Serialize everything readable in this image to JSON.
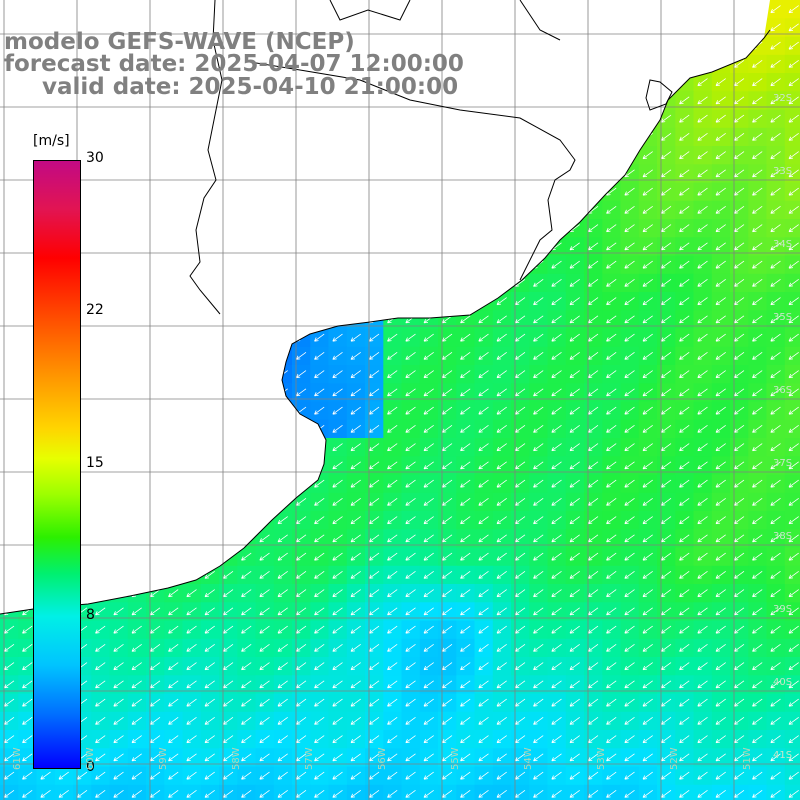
{
  "header": {
    "model": "modelo GEFS-WAVE (NCEP)",
    "forecast": "forecast date: 2025-04-07 12:00:00",
    "valid": "valid date: 2025-04-10 21:00:00"
  },
  "colorbar": {
    "unit": "[m/s]",
    "ticks": [
      {
        "value": "30",
        "fraction": 1.0
      },
      {
        "value": "22",
        "fraction": 0.733
      },
      {
        "value": "15",
        "fraction": 0.5
      },
      {
        "value": "8",
        "fraction": 0.267
      },
      {
        "value": "0",
        "fraction": 0.0
      }
    ],
    "colors": [
      "#c20a84",
      "#e21452",
      "#ff0000",
      "#ff4e00",
      "#ff9a00",
      "#ffd400",
      "#e7ff00",
      "#9cff00",
      "#2cf000",
      "#00f070",
      "#00f0e6",
      "#00c4ff",
      "#0070ff",
      "#0000ff"
    ]
  },
  "map": {
    "variable": "wind speed and direction (m/s)",
    "lat_labels": [
      "32S",
      "33S",
      "34S",
      "35S",
      "36S",
      "37S",
      "38S",
      "39S",
      "40S",
      "41S"
    ],
    "lon_labels": [
      "61W",
      "60W",
      "59W",
      "58W",
      "57W",
      "56W",
      "55W",
      "54W",
      "53W",
      "52W",
      "51W"
    ],
    "land_color": "#ffffff",
    "grid_color": "#808080",
    "coast_color": "#000000",
    "arrow_color": "#ffffff",
    "dominant_wind_direction": "from north-east"
  }
}
